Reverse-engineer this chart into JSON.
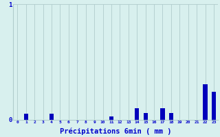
{
  "categories": [
    0,
    1,
    2,
    3,
    4,
    5,
    6,
    7,
    8,
    9,
    10,
    11,
    12,
    13,
    14,
    15,
    16,
    17,
    18,
    19,
    20,
    21,
    22,
    23
  ],
  "values": [
    0,
    0.05,
    0,
    0,
    0.05,
    0,
    0,
    0,
    0,
    0,
    0,
    0.03,
    0,
    0,
    0.1,
    0.06,
    0,
    0.1,
    0.06,
    0,
    0,
    0,
    0.31,
    0.24
  ],
  "bar_color": "#0000bb",
  "background_color": "#d8f0ee",
  "grid_color": "#b0cccc",
  "text_color": "#0000cc",
  "xlabel": "Précipitations 6min ( mm )",
  "ylim": [
    0,
    1.0
  ],
  "yticks": [
    0,
    1
  ]
}
